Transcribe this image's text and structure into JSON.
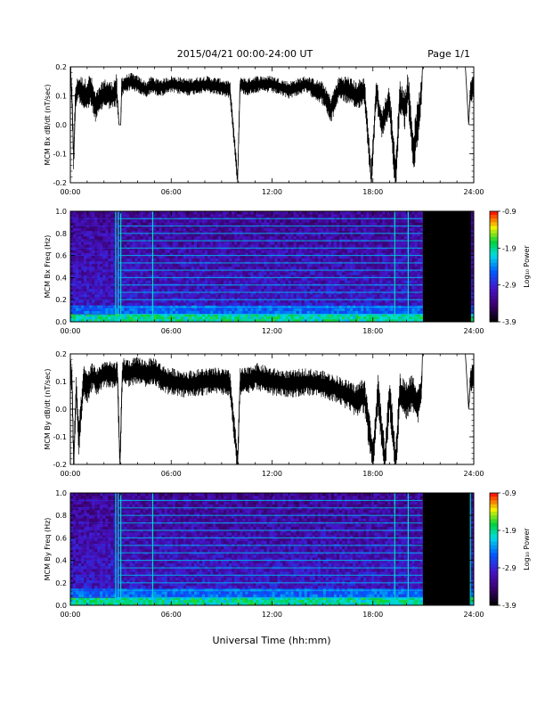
{
  "header": {
    "title": "2015/04/21   00:00-24:00 UT",
    "page": "Page 1/1"
  },
  "xlabel": "Universal Time (hh:mm)",
  "chart_data": [
    {
      "type": "line",
      "ylabel": "MCM Bx dB/dt (nT/sec)",
      "xlabel": "",
      "x_ticks": [
        "00:00",
        "06:00",
        "12:00",
        "18:00",
        "24:00"
      ],
      "y_ticks": [
        "-0.2",
        "-0.1",
        "0.0",
        "0.1",
        "0.2"
      ],
      "xlim": [
        0,
        24
      ],
      "ylim": [
        -0.2,
        0.2
      ],
      "series": [
        {
          "x": [
            0.0,
            0.1,
            0.2,
            0.3,
            0.45,
            0.6,
            0.9,
            1.2,
            1.5,
            2.0,
            2.5,
            2.75,
            2.9,
            3.0,
            3.05,
            3.2,
            3.6,
            4.0,
            4.5,
            4.85,
            5.1,
            5.5,
            6.0,
            7.0,
            8.0,
            9.0,
            9.5,
            9.95,
            10.1,
            10.5,
            11.0,
            12.0,
            13.0,
            14.0,
            15.0,
            15.5,
            16.0,
            16.5,
            17.0,
            17.5,
            17.9,
            18.2,
            18.5,
            19.0,
            19.35,
            19.6,
            19.9,
            20.1,
            20.4,
            20.7,
            20.9,
            20.95,
            21.5,
            22.5,
            23.5,
            23.7,
            23.8,
            24.0
          ],
          "y": [
            0.2,
            0.08,
            -0.12,
            0.09,
            0.13,
            0.12,
            0.1,
            0.12,
            0.06,
            0.11,
            0.1,
            0.12,
            0.0,
            0.0,
            0.13,
            0.14,
            0.15,
            0.14,
            0.12,
            0.14,
            0.13,
            0.13,
            0.14,
            0.13,
            0.14,
            0.13,
            0.12,
            -0.19,
            0.14,
            0.13,
            0.14,
            0.14,
            0.12,
            0.14,
            0.11,
            0.05,
            0.13,
            0.12,
            0.1,
            0.12,
            -0.19,
            0.12,
            0.0,
            0.08,
            -0.19,
            0.1,
            0.05,
            0.12,
            -0.1,
            0.02,
            0.12,
            0.2,
            0.2,
            0.2,
            0.2,
            0.0,
            0.12,
            0.13
          ],
          "band": [
            0.04,
            0.05,
            0.06,
            0.05,
            0.04,
            0.05,
            0.06,
            0.06,
            0.05,
            0.05,
            0.05,
            0.06,
            0.0,
            0.0,
            0.04,
            0.03,
            0.03,
            0.03,
            0.03,
            0.03,
            0.03,
            0.03,
            0.03,
            0.03,
            0.03,
            0.03,
            0.03,
            0.03,
            0.03,
            0.03,
            0.03,
            0.03,
            0.03,
            0.03,
            0.04,
            0.05,
            0.04,
            0.05,
            0.05,
            0.05,
            0.05,
            0.05,
            0.05,
            0.06,
            0.07,
            0.06,
            0.07,
            0.07,
            0.08,
            0.08,
            0.04,
            0.0,
            0.0,
            0.0,
            0.0,
            0.0,
            0.05,
            0.05
          ]
        }
      ]
    },
    {
      "type": "heatmap",
      "ylabel": "MCM Bx Freq (Hz)",
      "xlabel": "",
      "x_ticks": [
        "00:00",
        "06:00",
        "12:00",
        "18:00",
        "24:00"
      ],
      "y_ticks": [
        "0.0",
        "0.2",
        "0.4",
        "0.6",
        "0.8",
        "1.0"
      ],
      "xlim": [
        0,
        24
      ],
      "ylim": [
        0,
        1.0
      ],
      "colorbar": {
        "label": "Log₁₀ Power",
        "ticks": [
          "-0.9",
          "-1.9",
          "-2.9",
          "-3.9"
        ],
        "range": [
          -3.9,
          -0.9
        ]
      },
      "harmonic_lines_hz": [
        0.067,
        0.133,
        0.2,
        0.267,
        0.333,
        0.4,
        0.467,
        0.533,
        0.6,
        0.667,
        0.733,
        0.8,
        0.867,
        0.933
      ],
      "vertical_lines_h": [
        2.7,
        2.85,
        3.0,
        4.9,
        19.3,
        20.1
      ],
      "data_gap_h": [
        20.95,
        23.8
      ]
    },
    {
      "type": "line",
      "ylabel": "MCM By dB/dt (nT/sec)",
      "xlabel": "",
      "x_ticks": [
        "00:00",
        "06:00",
        "12:00",
        "18:00",
        "24:00"
      ],
      "y_ticks": [
        "-0.2",
        "-0.1",
        "0.0",
        "0.1",
        "0.2"
      ],
      "xlim": [
        0,
        24
      ],
      "ylim": [
        -0.2,
        0.2
      ],
      "series": [
        {
          "x": [
            0.0,
            0.1,
            0.2,
            0.35,
            0.5,
            0.8,
            1.0,
            1.3,
            1.6,
            2.0,
            2.5,
            2.8,
            2.95,
            3.1,
            3.5,
            4.0,
            4.5,
            5.0,
            5.5,
            6.0,
            7.0,
            8.0,
            9.0,
            9.5,
            9.95,
            10.1,
            10.5,
            11.0,
            12.0,
            13.0,
            14.0,
            15.0,
            16.0,
            17.0,
            17.5,
            18.0,
            18.3,
            18.7,
            19.0,
            19.35,
            19.6,
            20.0,
            20.3,
            20.7,
            20.9,
            20.95,
            21.5,
            22.5,
            23.5,
            23.7,
            23.8,
            24.0
          ],
          "y": [
            0.15,
            0.1,
            -0.2,
            0.08,
            -0.11,
            0.1,
            0.08,
            0.12,
            0.1,
            0.13,
            0.12,
            0.13,
            -0.2,
            0.14,
            0.13,
            0.14,
            0.13,
            0.14,
            0.11,
            0.1,
            0.09,
            0.1,
            0.1,
            0.09,
            -0.2,
            0.1,
            0.1,
            0.12,
            0.1,
            0.09,
            0.1,
            0.09,
            0.07,
            0.03,
            0.05,
            -0.18,
            0.06,
            -0.19,
            0.05,
            -0.2,
            0.06,
            0.03,
            0.06,
            0.02,
            0.08,
            0.2,
            0.2,
            0.2,
            0.2,
            0.0,
            0.1,
            0.12
          ],
          "band": [
            0.05,
            0.06,
            0.06,
            0.06,
            0.06,
            0.06,
            0.06,
            0.05,
            0.05,
            0.05,
            0.05,
            0.05,
            0.05,
            0.05,
            0.05,
            0.05,
            0.05,
            0.05,
            0.05,
            0.05,
            0.05,
            0.05,
            0.05,
            0.05,
            0.05,
            0.05,
            0.05,
            0.05,
            0.05,
            0.05,
            0.05,
            0.05,
            0.05,
            0.06,
            0.07,
            0.07,
            0.07,
            0.07,
            0.07,
            0.07,
            0.07,
            0.07,
            0.07,
            0.07,
            0.05,
            0.0,
            0.0,
            0.0,
            0.0,
            0.0,
            0.05,
            0.05
          ]
        }
      ]
    },
    {
      "type": "heatmap",
      "ylabel": "MCM By Freq (Hz)",
      "xlabel": "",
      "x_ticks": [
        "00:00",
        "06:00",
        "12:00",
        "18:00",
        "24:00"
      ],
      "y_ticks": [
        "0.0",
        "0.2",
        "0.4",
        "0.6",
        "0.8",
        "1.0"
      ],
      "xlim": [
        0,
        24
      ],
      "ylim": [
        0,
        1.0
      ],
      "colorbar": {
        "label": "Log₁₀ Power",
        "ticks": [
          "-0.9",
          "-1.9",
          "-2.9",
          "-3.9"
        ],
        "range": [
          -3.9,
          -0.9
        ]
      },
      "harmonic_lines_hz": [
        0.067,
        0.133,
        0.2,
        0.267,
        0.333,
        0.4,
        0.467,
        0.533,
        0.6,
        0.667,
        0.733,
        0.8,
        0.867,
        0.933
      ],
      "vertical_lines_h": [
        2.7,
        2.85,
        3.0,
        4.9,
        19.3,
        20.1,
        23.8
      ],
      "data_gap_h": [
        20.95,
        23.8
      ]
    }
  ]
}
